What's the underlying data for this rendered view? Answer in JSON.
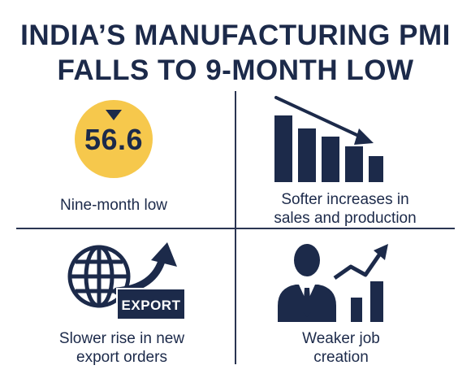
{
  "headline": {
    "line1": "INDIA’S MANUFACTURING PMI",
    "line2": "FALLS TO 9-MONTH LOW"
  },
  "colors": {
    "navy": "#1c2a4a",
    "accent_yellow": "#f6c84c"
  },
  "panels": {
    "pmi": {
      "value": "56.6",
      "icon": "down-triangle-icon",
      "caption": "Nine-month low"
    },
    "sales": {
      "icon": "declining-bar-chart-icon",
      "caption_line1": "Softer increases in",
      "caption_line2": "sales and production"
    },
    "export": {
      "icon": "globe-with-up-arrow-icon",
      "badge": "EXPORT",
      "caption_line1": "Slower rise in new",
      "caption_line2": "export orders"
    },
    "jobs": {
      "icon": "businessman-with-rising-chart-icon",
      "caption_line1": "Weaker job",
      "caption_line2": "creation"
    }
  }
}
